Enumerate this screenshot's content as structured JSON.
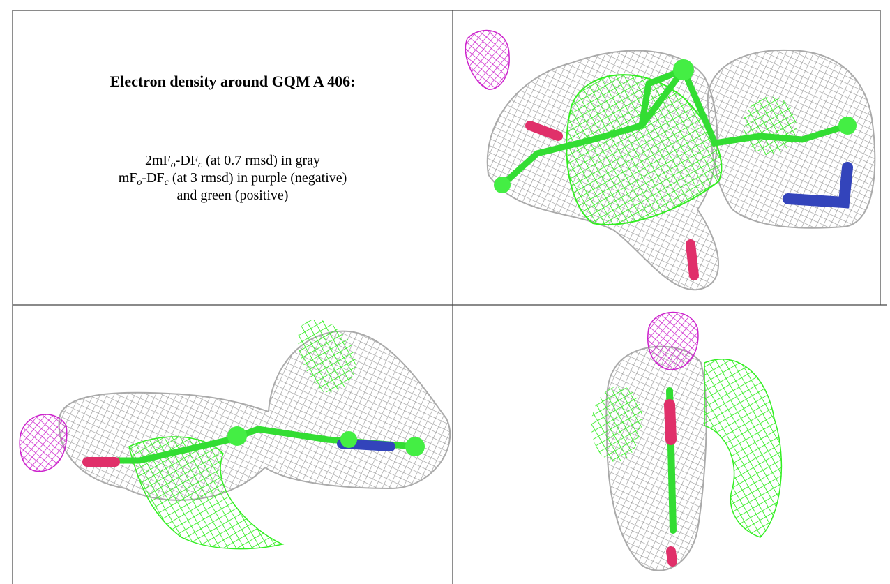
{
  "figure": {
    "title": "Electron density around GQM A 406:",
    "legend_lines": [
      [
        {
          "text": "2mF"
        },
        {
          "sub": "o"
        },
        {
          "text": "-DF"
        },
        {
          "sub": "c"
        },
        {
          "text": " (at 0.7 rmsd) in gray"
        }
      ],
      [
        {
          "text": "mF"
        },
        {
          "sub": "o"
        },
        {
          "text": "-DF"
        },
        {
          "sub": "c"
        },
        {
          "text": " (at 3 rmsd) in purple (negative)"
        }
      ],
      [
        {
          "text": "and green (positive)"
        }
      ]
    ]
  }
}
